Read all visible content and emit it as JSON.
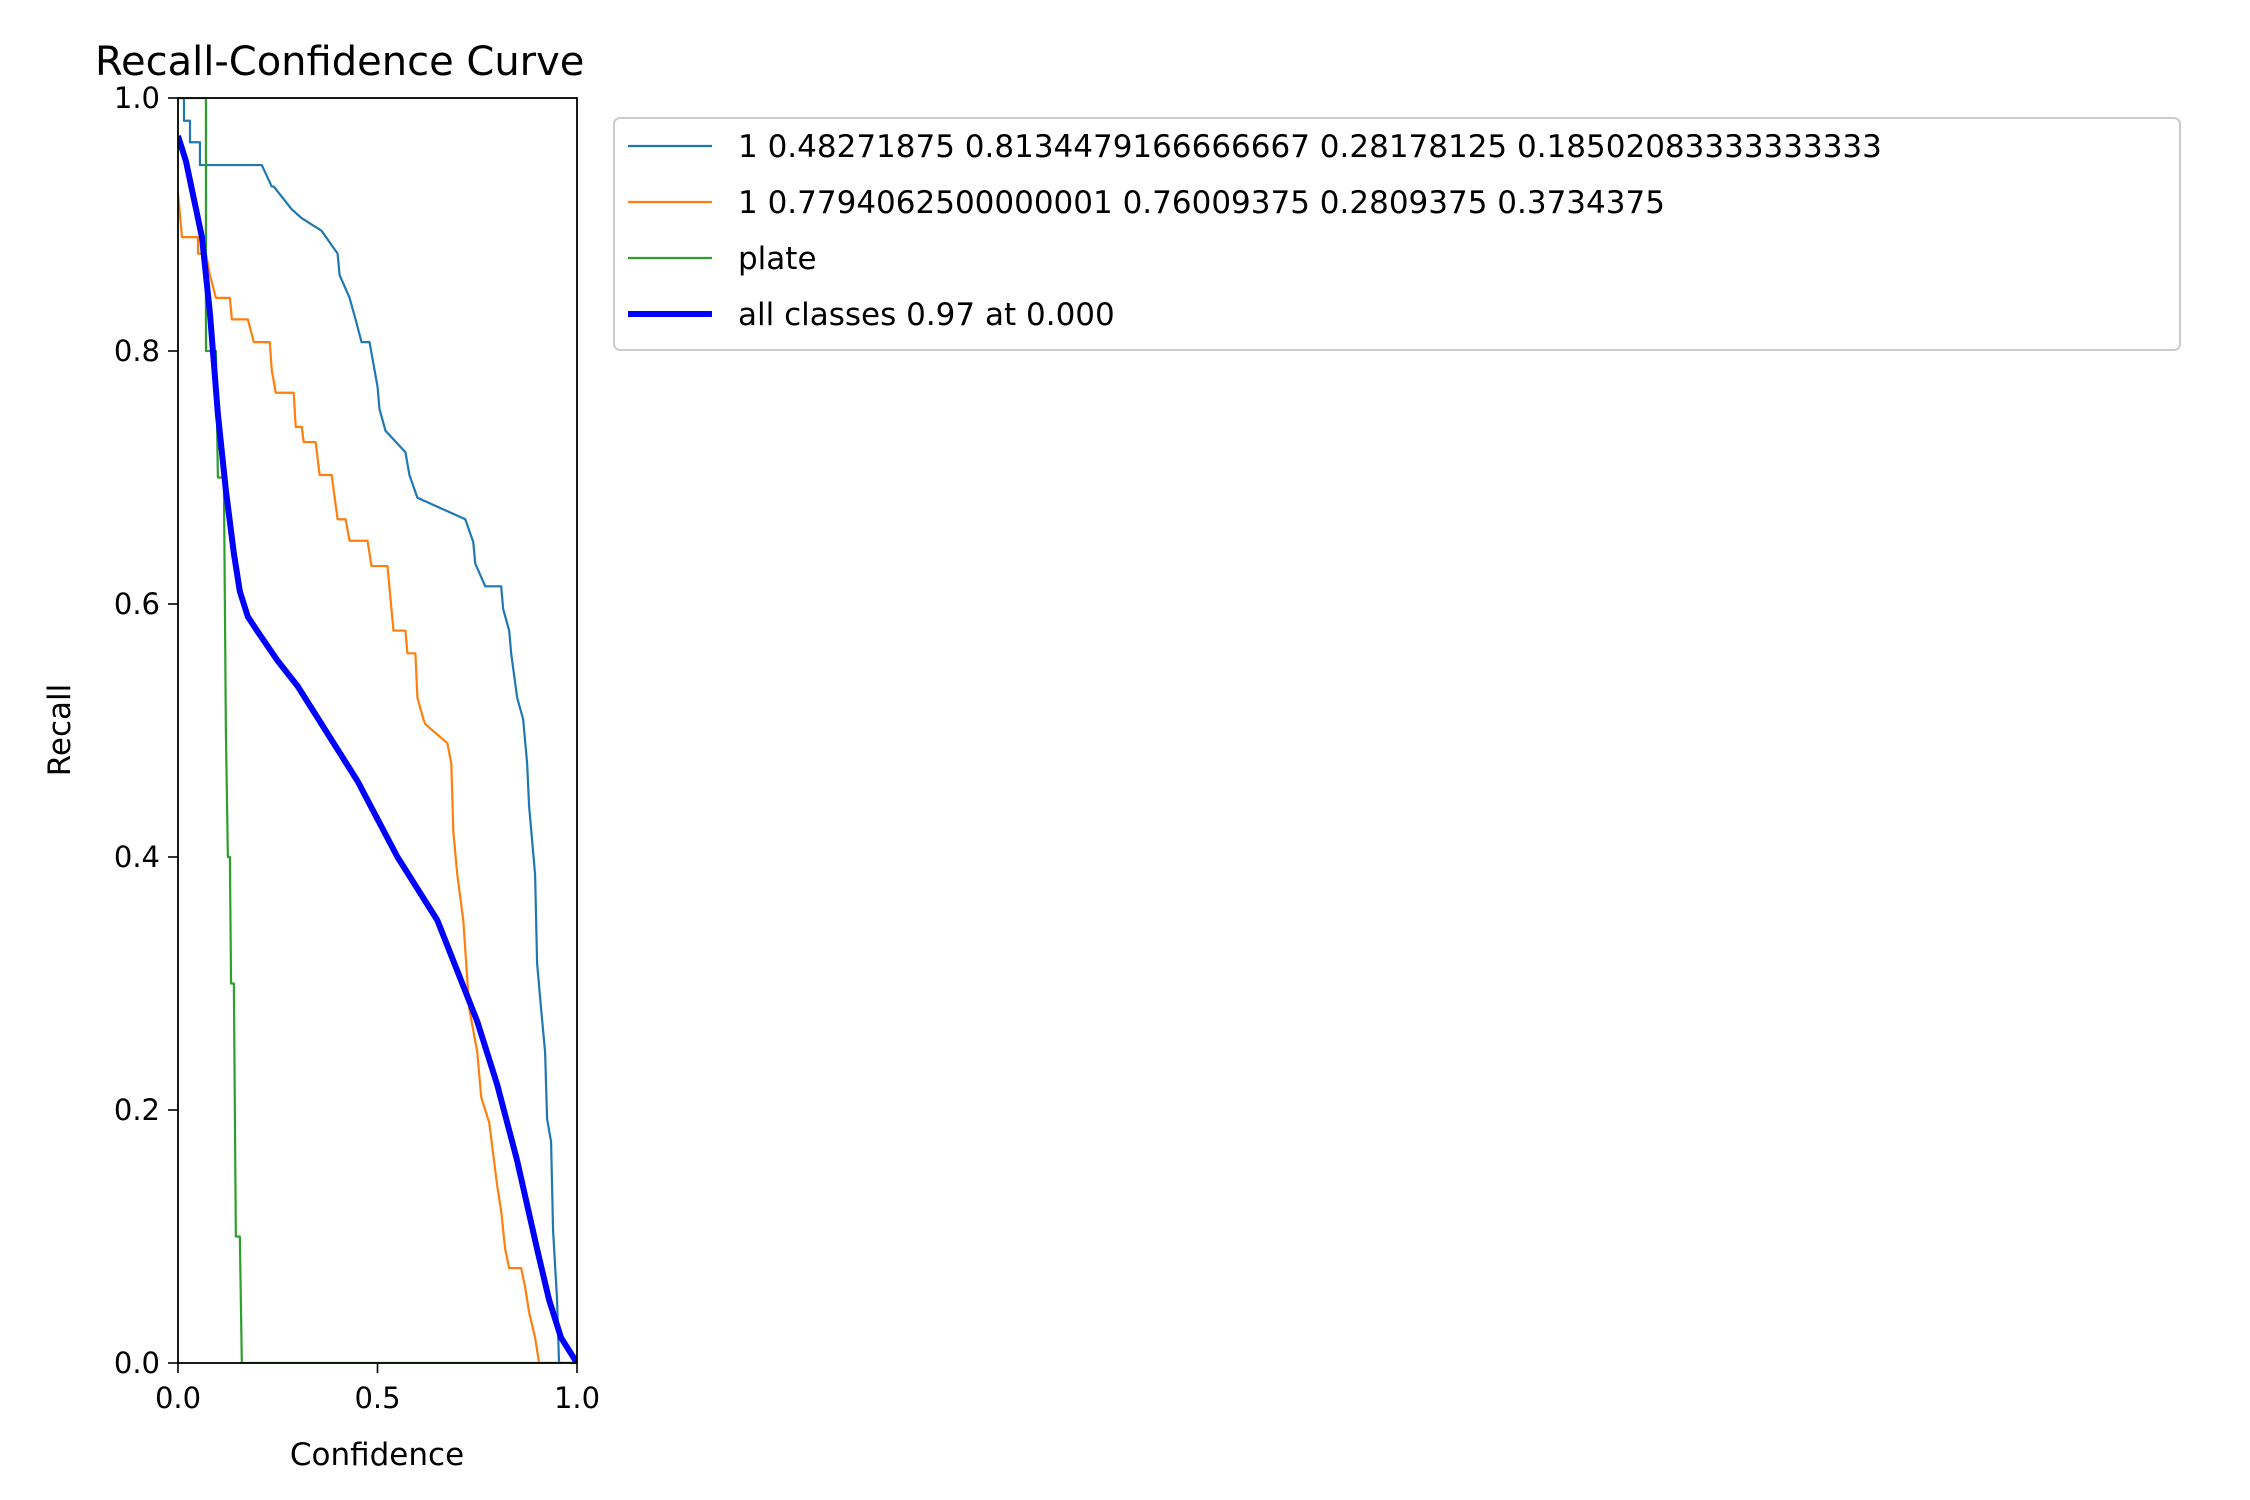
{
  "chart_data": {
    "type": "line",
    "title": "Recall-Confidence Curve",
    "xlabel": "Confidence",
    "ylabel": "Recall",
    "xlim": [
      0,
      1
    ],
    "ylim": [
      0,
      1
    ],
    "xticks": [
      "0.0",
      "0.5",
      "1.0"
    ],
    "yticks": [
      "0.0",
      "0.2",
      "0.4",
      "0.6",
      "0.8",
      "1.0"
    ],
    "grid": false,
    "legend_position": "outside-right-top",
    "series": [
      {
        "name": "1 0.48271875 0.8134479166666667 0.28178125 0.18502083333333333",
        "color": "#1f77b4",
        "width": "thin",
        "points": [
          [
            0.0,
            1.0
          ],
          [
            0.015,
            1.0
          ],
          [
            0.015,
            0.982
          ],
          [
            0.03,
            0.982
          ],
          [
            0.03,
            0.965
          ],
          [
            0.055,
            0.965
          ],
          [
            0.055,
            0.947
          ],
          [
            0.21,
            0.947
          ],
          [
            0.235,
            0.93
          ],
          [
            0.24,
            0.93
          ],
          [
            0.285,
            0.912
          ],
          [
            0.31,
            0.905
          ],
          [
            0.36,
            0.895
          ],
          [
            0.4,
            0.877
          ],
          [
            0.405,
            0.86
          ],
          [
            0.43,
            0.842
          ],
          [
            0.445,
            0.825
          ],
          [
            0.46,
            0.807
          ],
          [
            0.48,
            0.807
          ],
          [
            0.5,
            0.772
          ],
          [
            0.505,
            0.754
          ],
          [
            0.52,
            0.737
          ],
          [
            0.57,
            0.72
          ],
          [
            0.58,
            0.702
          ],
          [
            0.6,
            0.684
          ],
          [
            0.72,
            0.667
          ],
          [
            0.74,
            0.649
          ],
          [
            0.745,
            0.632
          ],
          [
            0.77,
            0.614
          ],
          [
            0.81,
            0.614
          ],
          [
            0.815,
            0.596
          ],
          [
            0.83,
            0.579
          ],
          [
            0.835,
            0.561
          ],
          [
            0.85,
            0.526
          ],
          [
            0.865,
            0.509
          ],
          [
            0.875,
            0.474
          ],
          [
            0.88,
            0.44
          ],
          [
            0.895,
            0.386
          ],
          [
            0.9,
            0.316
          ],
          [
            0.91,
            0.28
          ],
          [
            0.92,
            0.246
          ],
          [
            0.925,
            0.193
          ],
          [
            0.935,
            0.175
          ],
          [
            0.94,
            0.105
          ],
          [
            0.95,
            0.05
          ],
          [
            0.955,
            0.0
          ],
          [
            1.0,
            0.0
          ]
        ]
      },
      {
        "name": "1 0.7794062500000001 0.76009375 0.2809375 0.3734375",
        "color": "#ff7f0e",
        "width": "thin",
        "points": [
          [
            0.0,
            0.925
          ],
          [
            0.01,
            0.89
          ],
          [
            0.05,
            0.89
          ],
          [
            0.05,
            0.877
          ],
          [
            0.07,
            0.877
          ],
          [
            0.08,
            0.86
          ],
          [
            0.095,
            0.842
          ],
          [
            0.13,
            0.842
          ],
          [
            0.135,
            0.825
          ],
          [
            0.175,
            0.825
          ],
          [
            0.19,
            0.807
          ],
          [
            0.23,
            0.807
          ],
          [
            0.235,
            0.785
          ],
          [
            0.245,
            0.767
          ],
          [
            0.29,
            0.767
          ],
          [
            0.295,
            0.74
          ],
          [
            0.31,
            0.74
          ],
          [
            0.315,
            0.728
          ],
          [
            0.345,
            0.728
          ],
          [
            0.355,
            0.702
          ],
          [
            0.385,
            0.702
          ],
          [
            0.4,
            0.667
          ],
          [
            0.42,
            0.667
          ],
          [
            0.43,
            0.65
          ],
          [
            0.475,
            0.65
          ],
          [
            0.485,
            0.63
          ],
          [
            0.525,
            0.63
          ],
          [
            0.54,
            0.579
          ],
          [
            0.57,
            0.579
          ],
          [
            0.575,
            0.561
          ],
          [
            0.595,
            0.561
          ],
          [
            0.6,
            0.526
          ],
          [
            0.615,
            0.509
          ],
          [
            0.62,
            0.505
          ],
          [
            0.675,
            0.49
          ],
          [
            0.685,
            0.474
          ],
          [
            0.69,
            0.42
          ],
          [
            0.7,
            0.386
          ],
          [
            0.715,
            0.35
          ],
          [
            0.73,
            0.28
          ],
          [
            0.75,
            0.246
          ],
          [
            0.76,
            0.21
          ],
          [
            0.78,
            0.19
          ],
          [
            0.8,
            0.14
          ],
          [
            0.81,
            0.12
          ],
          [
            0.82,
            0.09
          ],
          [
            0.83,
            0.075
          ],
          [
            0.86,
            0.075
          ],
          [
            0.87,
            0.06
          ],
          [
            0.88,
            0.04
          ],
          [
            0.895,
            0.02
          ],
          [
            0.905,
            0.0
          ],
          [
            1.0,
            0.0
          ]
        ]
      },
      {
        "name": "plate",
        "color": "#2ca02c",
        "width": "thin",
        "points": [
          [
            0.0,
            1.0
          ],
          [
            0.07,
            1.0
          ],
          [
            0.07,
            0.8
          ],
          [
            0.095,
            0.8
          ],
          [
            0.1,
            0.7
          ],
          [
            0.115,
            0.7
          ],
          [
            0.12,
            0.5
          ],
          [
            0.125,
            0.4
          ],
          [
            0.13,
            0.4
          ],
          [
            0.133,
            0.3
          ],
          [
            0.14,
            0.3
          ],
          [
            0.145,
            0.1
          ],
          [
            0.155,
            0.1
          ],
          [
            0.16,
            0.0
          ],
          [
            1.0,
            0.0
          ]
        ]
      },
      {
        "name": "all classes 0.97 at 0.000",
        "color": "#0000ff",
        "width": "thick",
        "points": [
          [
            0.0,
            0.97
          ],
          [
            0.02,
            0.95
          ],
          [
            0.04,
            0.92
          ],
          [
            0.06,
            0.89
          ],
          [
            0.08,
            0.83
          ],
          [
            0.1,
            0.75
          ],
          [
            0.12,
            0.69
          ],
          [
            0.14,
            0.64
          ],
          [
            0.155,
            0.61
          ],
          [
            0.175,
            0.59
          ],
          [
            0.2,
            0.578
          ],
          [
            0.25,
            0.555
          ],
          [
            0.3,
            0.535
          ],
          [
            0.35,
            0.51
          ],
          [
            0.4,
            0.485
          ],
          [
            0.45,
            0.46
          ],
          [
            0.5,
            0.43
          ],
          [
            0.55,
            0.4
          ],
          [
            0.6,
            0.375
          ],
          [
            0.65,
            0.35
          ],
          [
            0.7,
            0.31
          ],
          [
            0.75,
            0.27
          ],
          [
            0.8,
            0.22
          ],
          [
            0.85,
            0.16
          ],
          [
            0.9,
            0.09
          ],
          [
            0.93,
            0.05
          ],
          [
            0.96,
            0.02
          ],
          [
            1.0,
            0.0
          ]
        ]
      }
    ]
  }
}
